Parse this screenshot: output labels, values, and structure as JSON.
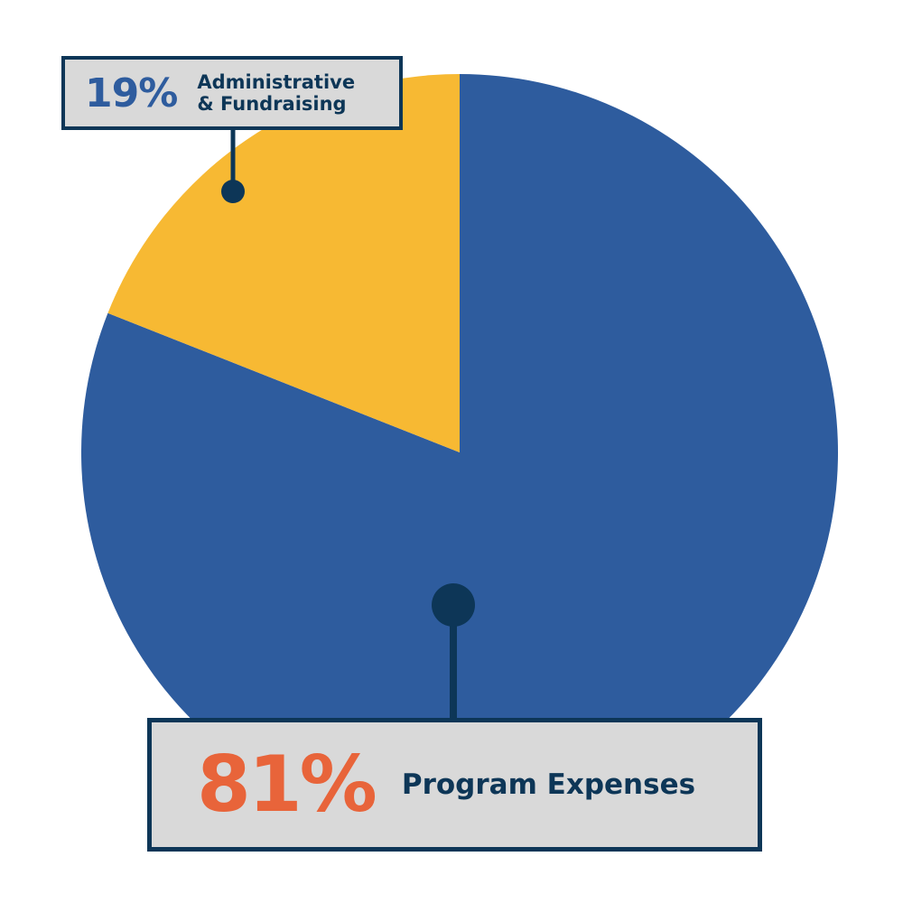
{
  "chart_data": {
    "type": "pie",
    "categories": [
      "Program Expenses",
      "Administrative & Fundraising"
    ],
    "values": [
      81,
      19
    ],
    "value_labels": [
      "81%",
      "19%"
    ],
    "colors": [
      "#2e5c9e",
      "#f7b933"
    ]
  }
}
